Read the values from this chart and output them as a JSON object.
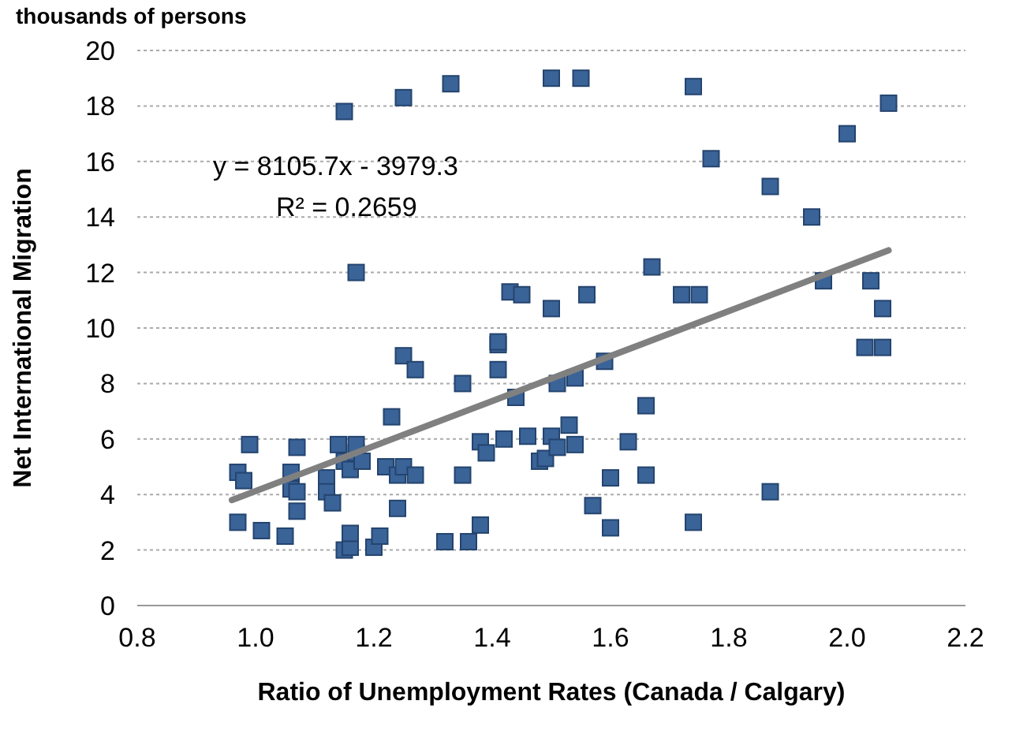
{
  "chart_data": {
    "type": "scatter",
    "title": "thousands of persons",
    "xlabel": "Ratio of Unemployment Rates (Canada / Calgary)",
    "ylabel": "Net International Migration",
    "annotations": [
      "y = 8105.7x - 3979.3",
      "R² = 0.2659"
    ],
    "xlim": [
      0.8,
      2.2
    ],
    "xticks": [
      {
        "value": 0.8,
        "label": "0.8"
      },
      {
        "value": 1,
        "label": "1.0"
      },
      {
        "value": 1.2,
        "label": "1.2"
      },
      {
        "value": 1.4,
        "label": "1.4"
      },
      {
        "value": 1.6,
        "label": "1.6"
      },
      {
        "value": 1.8,
        "label": "1.8"
      },
      {
        "value": 2,
        "label": "2.0"
      },
      {
        "value": 2.2,
        "label": "2.2"
      }
    ],
    "ylim": [
      0,
      20
    ],
    "yticks": [
      0,
      2,
      4,
      6,
      8,
      10,
      12,
      14,
      16,
      18,
      20
    ],
    "grid": "y",
    "marker": "square",
    "series": [
      {
        "color": "#3a6398",
        "x": [
          0.97,
          0.98,
          0.97,
          0.99,
          1.01,
          1.05,
          1.06,
          1.06,
          1.07,
          1.07,
          1.07,
          1.12,
          1.12,
          1.13,
          1.14,
          1.15,
          1.16,
          1.16,
          1.15,
          1.16,
          1.17,
          1.17,
          1.18,
          1.17,
          1.15,
          1.2,
          1.21,
          1.22,
          1.23,
          1.24,
          1.24,
          1.25,
          1.25,
          1.27,
          1.27,
          1.25,
          1.32,
          1.33,
          1.35,
          1.35,
          1.36,
          1.38,
          1.39,
          1.38,
          1.41,
          1.41,
          1.41,
          1.42,
          1.43,
          1.44,
          1.45,
          1.46,
          1.48,
          1.49,
          1.5,
          1.5,
          1.5,
          1.51,
          1.51,
          1.53,
          1.54,
          1.54,
          1.55,
          1.56,
          1.57,
          1.59,
          1.6,
          1.6,
          1.63,
          1.66,
          1.66,
          1.67,
          1.72,
          1.74,
          1.74,
          1.75,
          1.77,
          1.87,
          1.87,
          1.94,
          1.96,
          2.0,
          2.03,
          2.04,
          2.06,
          2.06,
          2.07
        ],
        "values": [
          4.8,
          4.5,
          3.0,
          5.8,
          2.7,
          2.5,
          4.2,
          4.8,
          4.1,
          5.7,
          3.4,
          4.6,
          4.1,
          3.7,
          5.8,
          2.0,
          2.1,
          2.6,
          5.2,
          4.9,
          5.5,
          5.8,
          5.2,
          12.0,
          17.8,
          2.1,
          2.5,
          5.0,
          6.8,
          4.7,
          3.5,
          9.0,
          5.0,
          8.5,
          4.7,
          18.3,
          2.3,
          18.8,
          8.0,
          4.7,
          2.3,
          5.9,
          5.5,
          2.9,
          9.4,
          9.5,
          8.5,
          6.0,
          11.3,
          7.5,
          11.2,
          6.1,
          5.2,
          5.3,
          10.7,
          19.0,
          6.1,
          5.7,
          8.0,
          6.5,
          8.2,
          5.8,
          19.0,
          11.2,
          3.6,
          8.8,
          4.6,
          2.8,
          5.9,
          7.2,
          4.7,
          12.2,
          11.2,
          18.7,
          3.0,
          11.2,
          16.1,
          15.1,
          4.1,
          14.0,
          11.7,
          17.0,
          9.3,
          11.7,
          9.3,
          10.7,
          18.1
        ]
      },
      {
        "type": "line",
        "marker": "none",
        "color": "#808080",
        "x": [
          0.96,
          2.07
        ],
        "values": [
          3.8,
          12.8
        ]
      }
    ]
  }
}
